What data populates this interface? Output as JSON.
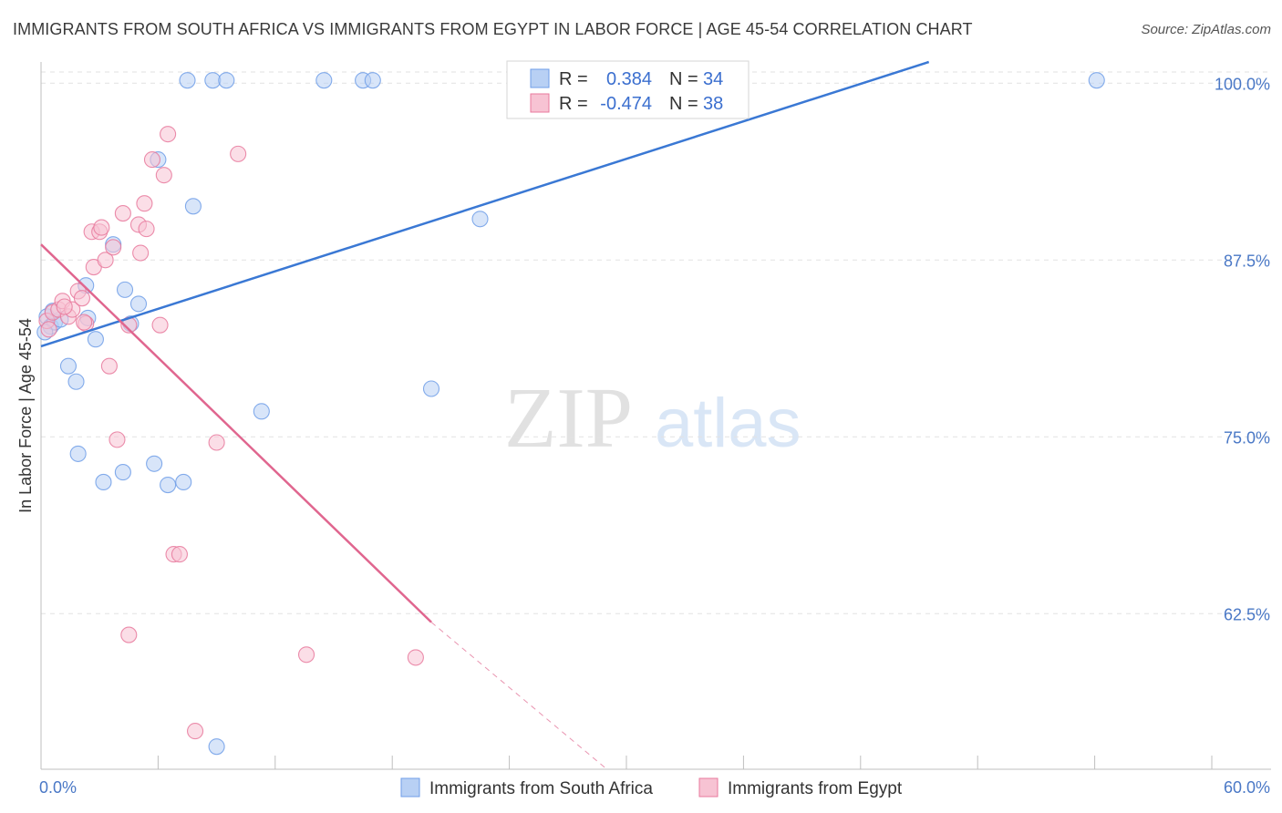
{
  "title": "IMMIGRANTS FROM SOUTH AFRICA VS IMMIGRANTS FROM EGYPT IN LABOR FORCE | AGE 45-54 CORRELATION CHART",
  "source": "Source: ZipAtlas.com",
  "watermark": {
    "zip": "ZIP",
    "atlas": "atlas"
  },
  "chart_data": {
    "type": "scatter",
    "title": "IMMIGRANTS FROM SOUTH AFRICA VS IMMIGRANTS FROM EGYPT IN LABOR FORCE | AGE 45-54 CORRELATION CHART",
    "xlabel": "",
    "ylabel": "In Labor Force | Age 45-54",
    "xlim": [
      0,
      60
    ],
    "ylim": [
      51.5,
      101.5
    ],
    "x_tick_labels": [
      {
        "value": 0,
        "label": "0.0%"
      },
      {
        "value": 60,
        "label": "60.0%"
      }
    ],
    "y_ticks": [
      {
        "value": 100,
        "label": "100.0%"
      },
      {
        "value": 87.5,
        "label": "87.5%"
      },
      {
        "value": 75,
        "label": "75.0%"
      },
      {
        "value": 62.5,
        "label": "62.5%"
      }
    ],
    "legend": {
      "r_label": "R =",
      "n_label": "N =",
      "entries": [
        {
          "r": "0.384",
          "n": "34"
        },
        {
          "r": "-0.474",
          "n": "38"
        }
      ]
    },
    "series": [
      {
        "name": "Immigrants from South Africa",
        "color": "#6f9ee8",
        "fill": "#b8d0f4",
        "trend": {
          "x": [
            0,
            45.5
          ],
          "y": [
            81.4,
            101.5
          ]
        },
        "points": [
          [
            0.3,
            83.5
          ],
          [
            0.5,
            82.8
          ],
          [
            0.7,
            83.1
          ],
          [
            1.0,
            83.3
          ],
          [
            1.4,
            80.0
          ],
          [
            1.8,
            78.9
          ],
          [
            2.4,
            83.4
          ],
          [
            2.8,
            81.9
          ],
          [
            3.2,
            71.8
          ],
          [
            4.2,
            72.5
          ],
          [
            2.3,
            85.7
          ],
          [
            3.7,
            88.6
          ],
          [
            4.3,
            85.4
          ],
          [
            5.0,
            84.4
          ],
          [
            4.6,
            83.0
          ],
          [
            5.8,
            73.1
          ],
          [
            6.0,
            94.6
          ],
          [
            6.5,
            71.6
          ],
          [
            7.3,
            71.8
          ],
          [
            7.8,
            91.3
          ],
          [
            9.0,
            53.1
          ],
          [
            11.3,
            76.8
          ],
          [
            7.5,
            100.2
          ],
          [
            8.8,
            100.2
          ],
          [
            9.5,
            100.2
          ],
          [
            14.5,
            100.2
          ],
          [
            16.5,
            100.2
          ],
          [
            17.0,
            100.2
          ],
          [
            20.0,
            78.4
          ],
          [
            22.5,
            90.4
          ],
          [
            54.1,
            100.2
          ],
          [
            0.2,
            82.4
          ],
          [
            0.6,
            83.9
          ],
          [
            1.9,
            73.8
          ]
        ]
      },
      {
        "name": "Immigrants from Egypt",
        "color": "#e8799c",
        "fill": "#f7c3d3",
        "trend": {
          "x": [
            0,
            20.0
          ],
          "y": [
            88.6,
            61.9
          ]
        },
        "trend_dashed": {
          "x": [
            20.0,
            29.0
          ],
          "y": [
            61.9,
            51.5
          ]
        },
        "points": [
          [
            0.3,
            83.2
          ],
          [
            0.6,
            83.8
          ],
          [
            0.9,
            84.0
          ],
          [
            1.1,
            84.6
          ],
          [
            1.4,
            83.5
          ],
          [
            1.6,
            84.0
          ],
          [
            1.9,
            85.3
          ],
          [
            2.1,
            84.8
          ],
          [
            2.3,
            83.0
          ],
          [
            2.6,
            89.5
          ],
          [
            2.7,
            87.0
          ],
          [
            3.0,
            89.5
          ],
          [
            3.3,
            87.5
          ],
          [
            3.5,
            80.0
          ],
          [
            3.7,
            88.4
          ],
          [
            3.9,
            74.8
          ],
          [
            4.2,
            90.8
          ],
          [
            4.5,
            82.9
          ],
          [
            4.5,
            61.0
          ],
          [
            5.0,
            90.0
          ],
          [
            5.1,
            88.0
          ],
          [
            5.4,
            89.7
          ],
          [
            5.3,
            91.5
          ],
          [
            5.7,
            94.6
          ],
          [
            6.1,
            82.9
          ],
          [
            6.3,
            93.5
          ],
          [
            6.5,
            96.4
          ],
          [
            6.8,
            66.7
          ],
          [
            7.1,
            66.7
          ],
          [
            7.9,
            54.2
          ],
          [
            9.0,
            74.6
          ],
          [
            10.1,
            95.0
          ],
          [
            13.6,
            59.6
          ],
          [
            19.2,
            59.4
          ],
          [
            0.4,
            82.6
          ],
          [
            1.2,
            84.2
          ],
          [
            2.2,
            83.1
          ],
          [
            3.1,
            89.8
          ]
        ]
      }
    ]
  }
}
